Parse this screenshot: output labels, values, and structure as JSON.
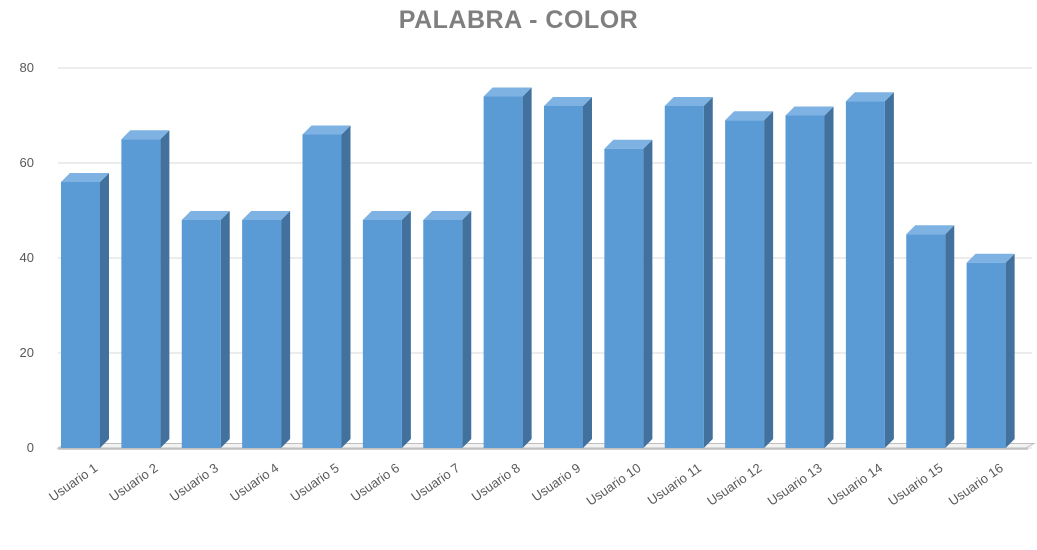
{
  "chart_data": {
    "type": "bar",
    "title": "PALABRA - COLOR",
    "xlabel": "",
    "ylabel": "",
    "ylim": [
      0,
      80
    ],
    "yticks": [
      0,
      20,
      40,
      60,
      80
    ],
    "grid": true,
    "legend": "none",
    "categories": [
      "Usuario 1",
      "Usuario 2",
      "Usuario 3",
      "Usuario 4",
      "Usuario 5",
      "Usuario 6",
      "Usuario 7",
      "Usuario 8",
      "Usuario 9",
      "Usuario 10",
      "Usuario 11",
      "Usuario 12",
      "Usuario 13",
      "Usuario 14",
      "Usuario 15",
      "Usuario 16"
    ],
    "values": [
      56,
      65,
      48,
      48,
      66,
      48,
      48,
      74,
      72,
      63,
      72,
      69,
      70,
      73,
      45,
      39
    ],
    "colors": {
      "bar_front": "#5b9bd5",
      "bar_side": "#41719c",
      "bar_top": "#7eb2e3",
      "grid": "#d9d9d9",
      "axis": "#bfbfbf",
      "title": "#7f7f7f",
      "tick": "#595959"
    }
  }
}
